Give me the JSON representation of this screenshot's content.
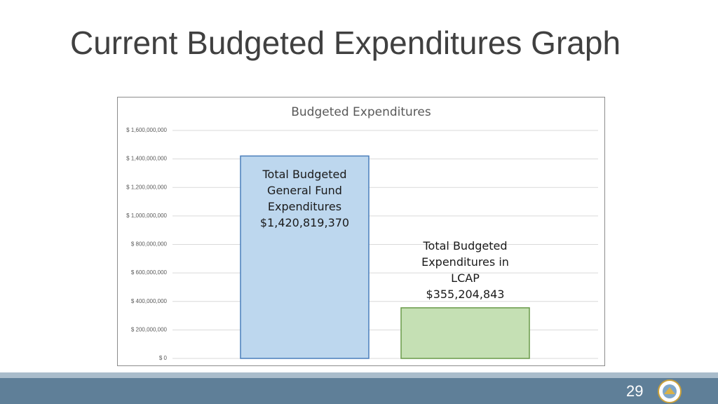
{
  "slide_title": "Current Budgeted Expenditures Graph",
  "page_number": "29",
  "chart_data": {
    "type": "bar",
    "title": "Budgeted Expenditures",
    "categories": [
      "Total Budgeted General Fund Expenditures",
      "Total Budgeted Expenditures in LCAP"
    ],
    "values": [
      1420819370,
      355204843
    ],
    "value_labels": [
      "$1,420,819,370",
      "$355,204,843"
    ],
    "colors": [
      "#bdd7ee",
      "#c5e0b4"
    ],
    "edge_colors": [
      "#4a7ebb",
      "#6a9a4a"
    ],
    "ylim": [
      0,
      1600000000
    ],
    "yticks": [
      {
        "value": 0,
        "label": "$ 0"
      },
      {
        "value": 200000000,
        "label": "$ 200,000,000"
      },
      {
        "value": 400000000,
        "label": "$ 400,000,000"
      },
      {
        "value": 600000000,
        "label": "$ 600,000,000"
      },
      {
        "value": 800000000,
        "label": "$ 800,000,000"
      },
      {
        "value": 1000000000,
        "label": "$ 1,000,000,000"
      },
      {
        "value": 1200000000,
        "label": "$ 1,200,000,000"
      },
      {
        "value": 1400000000,
        "label": "$ 1,400,000,000"
      },
      {
        "value": 1600000000,
        "label": "$ 1,600,000,000"
      }
    ],
    "grid": true
  }
}
